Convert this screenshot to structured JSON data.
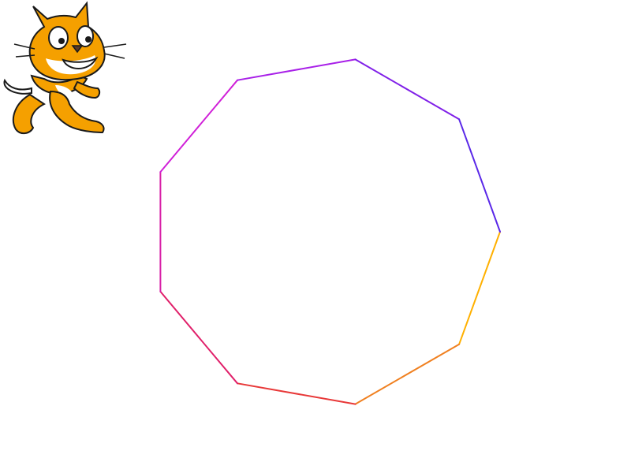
{
  "stage": {
    "background": "#ffffff"
  },
  "drawing": {
    "shape": "nonagon",
    "sides": 9,
    "pen_colors": [
      "#ffb000",
      "#f08020",
      "#e83838",
      "#e0206a",
      "#d820a8",
      "#d020d8",
      "#a820e8",
      "#8020e8",
      "#5a28e8"
    ]
  },
  "sprite": {
    "icon": "scratch-cat-icon",
    "body_color": "#f5a000",
    "outline_color": "#1a1a1a"
  }
}
